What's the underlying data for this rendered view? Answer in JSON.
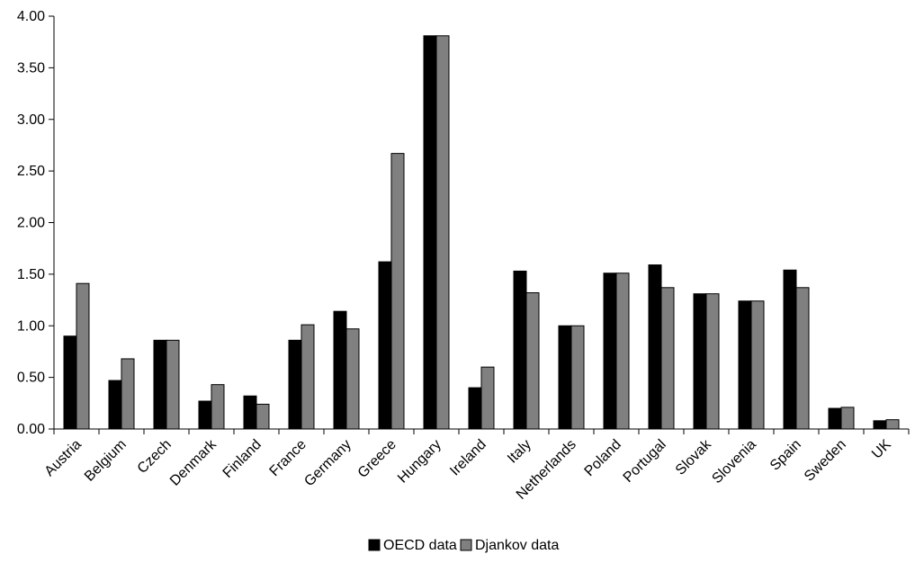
{
  "chart_data": {
    "type": "bar",
    "title": "",
    "xlabel": "",
    "ylabel": "",
    "ylim": [
      0,
      4
    ],
    "yticks": [
      "0.00",
      "0.50",
      "1.00",
      "1.50",
      "2.00",
      "2.50",
      "3.00",
      "3.50",
      "4.00"
    ],
    "categories": [
      "Austria",
      "Belgium",
      "Czech",
      "Denmark",
      "Finland",
      "France",
      "Germany",
      "Greece",
      "Hungary",
      "Ireland",
      "Italy",
      "Netherlands",
      "Poland",
      "Portugal",
      "Slovak",
      "Slovenia",
      "Spain",
      "Sweden",
      "UK"
    ],
    "series": [
      {
        "name": "OECD data",
        "color": "#000000",
        "values": [
          0.9,
          0.47,
          0.86,
          0.27,
          0.32,
          0.86,
          1.14,
          1.62,
          3.81,
          0.4,
          1.53,
          1.0,
          1.51,
          1.59,
          1.31,
          1.24,
          1.54,
          0.2,
          0.08
        ]
      },
      {
        "name": "Djankov data",
        "color": "#808080",
        "values": [
          1.41,
          0.68,
          0.86,
          0.43,
          0.24,
          1.01,
          0.97,
          2.67,
          3.81,
          0.6,
          1.32,
          1.0,
          1.51,
          1.37,
          1.31,
          1.24,
          1.37,
          0.21,
          0.09
        ]
      }
    ],
    "legend_position": "bottom-center",
    "grid": false
  }
}
